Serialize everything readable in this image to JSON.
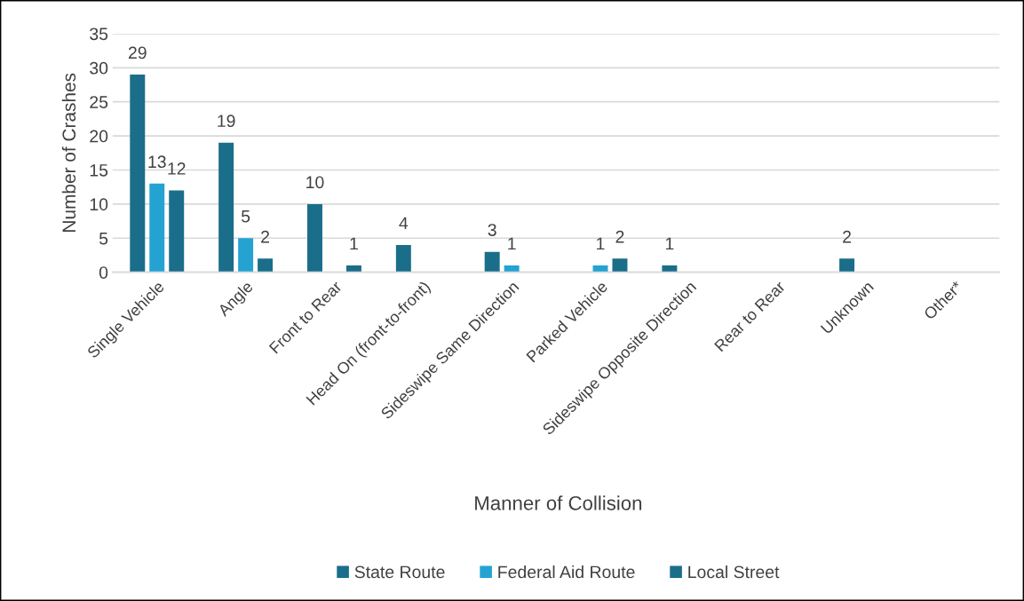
{
  "chart_data": {
    "type": "bar",
    "xlabel": "Manner of Collision",
    "ylabel": "Number of Crashes",
    "categories": [
      "Single Vehicle",
      "Angle",
      "Front to Rear",
      "Head On (front-to-front)",
      "Sideswipe Same Direction",
      "Parked Vehicle",
      "Sideswipe Opposite Direction",
      "Rear to Rear",
      "Unknown",
      "Other*"
    ],
    "series": [
      {
        "name": "State Route",
        "color": "#1a6e8a",
        "values": [
          29,
          19,
          10,
          4,
          3,
          null,
          1,
          null,
          2,
          null
        ]
      },
      {
        "name": "Federal Aid Route",
        "color": "#24a3d3",
        "values": [
          13,
          5,
          null,
          null,
          1,
          1,
          null,
          null,
          null,
          null
        ]
      },
      {
        "name": "Local Street",
        "color": "#1a6e8a",
        "values": [
          12,
          2,
          1,
          null,
          null,
          2,
          null,
          null,
          null,
          null
        ]
      }
    ],
    "ylim": [
      0,
      35
    ],
    "yticks": [
      0,
      5,
      10,
      15,
      20,
      25,
      30,
      35
    ],
    "grid": "y",
    "legend": "bottom",
    "data_labels": true
  }
}
